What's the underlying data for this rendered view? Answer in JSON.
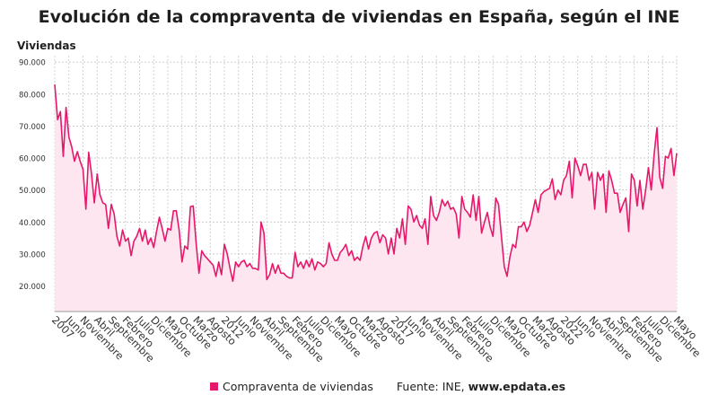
{
  "chart_data": {
    "type": "area",
    "title": "Evolución de la compraventa de viviendas en España, según el INE",
    "ylabel": "Viviendas",
    "xlabel": "",
    "ylim": [
      12000,
      92000
    ],
    "y_ticks": [
      20000,
      30000,
      40000,
      50000,
      60000,
      70000,
      80000,
      90000
    ],
    "y_tick_labels": [
      "20.000",
      "30.000",
      "40.000",
      "50.000",
      "60.000",
      "70.000",
      "80.000",
      "90.000"
    ],
    "x_tick_labels": [
      "2007",
      "Junio",
      "Noviembre",
      "Abril",
      "Septiembre",
      "Febrero",
      "Julio",
      "Diciembre",
      "Mayo",
      "Octubre",
      "Marzo",
      "Agosto",
      "2012",
      "Junio",
      "Noviembre",
      "Abril",
      "Septiembre",
      "Febrero",
      "Julio",
      "Diciembre",
      "Mayo",
      "Octubre",
      "Marzo",
      "Agosto",
      "2017",
      "Junio",
      "Noviembre",
      "Abril",
      "Septiembre",
      "Febrero",
      "Julio",
      "Diciembre",
      "Mayo",
      "Octubre",
      "Marzo",
      "Agosto",
      "2022",
      "Junio",
      "Noviembre",
      "Abril",
      "Septiembre",
      "Febrero",
      "Julio",
      "Diciembre",
      "Mayo"
    ],
    "start": "2007-01",
    "end": "2025-05",
    "series": [
      {
        "name": "Compraventa de viviendas",
        "color": "#e6186c",
        "fill": "#fde6ef",
        "values": [
          83000,
          72000,
          74500,
          60500,
          75800,
          66500,
          63500,
          59000,
          62000,
          59000,
          56500,
          44000,
          61800,
          55000,
          46000,
          55000,
          48500,
          46000,
          45500,
          38000,
          45500,
          42500,
          35500,
          32500,
          37500,
          34000,
          35000,
          29500,
          34000,
          35500,
          38000,
          34000,
          37500,
          33000,
          35000,
          32000,
          37000,
          41500,
          38000,
          34000,
          38000,
          37500,
          43500,
          43500,
          37500,
          27500,
          32500,
          31500,
          44800,
          45000,
          33500,
          24000,
          31000,
          29500,
          28500,
          27500,
          26500,
          23000,
          27500,
          23500,
          33000,
          30000,
          25500,
          21500,
          27500,
          26000,
          27500,
          28000,
          26000,
          27000,
          25500,
          25500,
          25000,
          40000,
          36500,
          22000,
          23500,
          27000,
          24000,
          26500,
          24000,
          24000,
          23000,
          22500,
          22500,
          30500,
          26000,
          27500,
          25500,
          28000,
          26000,
          28500,
          25000,
          27500,
          27000,
          26000,
          27000,
          33500,
          30000,
          28000,
          28000,
          30500,
          31500,
          33000,
          29500,
          31000,
          28000,
          29000,
          28000,
          32500,
          35500,
          31500,
          35000,
          36500,
          37000,
          33500,
          36000,
          35000,
          30000,
          35000,
          30000,
          38000,
          35000,
          41000,
          33000,
          45000,
          44000,
          40000,
          42000,
          39000,
          38000,
          41000,
          33000,
          48000,
          42000,
          40500,
          43000,
          47000,
          45000,
          46500,
          44000,
          44500,
          42500,
          35000,
          48000,
          44000,
          43000,
          41500,
          48500,
          40500,
          48000,
          36500,
          40000,
          43000,
          38500,
          35500,
          47500,
          45500,
          35500,
          26000,
          23000,
          29000,
          33000,
          32000,
          38500,
          38500,
          40000,
          37000,
          39000,
          43000,
          47000,
          43000,
          48500,
          49500,
          50000,
          50500,
          53500,
          47000,
          50000,
          48500,
          53000,
          54500,
          59000,
          47500,
          60000,
          57500,
          54500,
          58000,
          58000,
          53000,
          55500,
          44000,
          55500,
          53000,
          55000,
          43000,
          56000,
          53000,
          49000,
          49000,
          43000,
          45500,
          47500,
          37000,
          55000,
          53000,
          45000,
          53000,
          44000,
          50000,
          57000,
          50000,
          61000,
          69500,
          54000,
          50500,
          60500,
          60000,
          63000,
          54500,
          61500
        ]
      }
    ],
    "legend": [
      "Compraventa de viviendas"
    ],
    "legend_position": "bottom",
    "source_prefix": "Fuente: INE, ",
    "source_site": "www.epdata.es"
  }
}
